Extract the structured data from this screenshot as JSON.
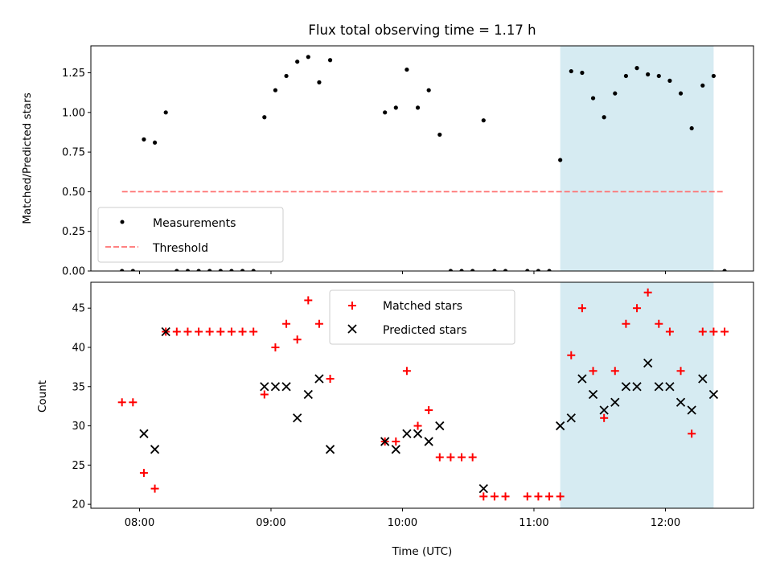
{
  "title": "Flux total observing time = 1.17 h",
  "colors": {
    "measurement": "#000000",
    "threshold": "#ff7070",
    "matched": "#ff0000",
    "predicted": "#000000",
    "highlight": "#add8e6"
  },
  "chart_data": [
    {
      "type": "scatter",
      "id": "ratio",
      "xlabel": "",
      "ylabel": "Matched/Predicted stars",
      "xlim_hours": [
        7.63,
        12.67
      ],
      "ylim": [
        0,
        1.42
      ],
      "yticks": [
        0.0,
        0.25,
        0.5,
        0.75,
        1.0,
        1.25
      ],
      "ytick_labels": [
        "0.00",
        "0.25",
        "0.50",
        "0.75",
        "1.00",
        "1.25"
      ],
      "highlight_span": [
        "11:12",
        "12:22"
      ],
      "legend": {
        "placement": "lower-left",
        "entries": [
          "Measurements",
          "Threshold"
        ]
      },
      "threshold": {
        "name": "Threshold",
        "value": 0.5,
        "x_from": "07:52",
        "x_to": "12:27"
      },
      "measurements": {
        "name": "Measurements",
        "points": [
          [
            "07:52",
            0.0
          ],
          [
            "07:57",
            0.0
          ],
          [
            "08:02",
            0.83
          ],
          [
            "08:07",
            0.81
          ],
          [
            "08:12",
            1.0
          ],
          [
            "08:17",
            0.0
          ],
          [
            "08:22",
            0.0
          ],
          [
            "08:27",
            0.0
          ],
          [
            "08:32",
            0.0
          ],
          [
            "08:37",
            0.0
          ],
          [
            "08:42",
            0.0
          ],
          [
            "08:47",
            0.0
          ],
          [
            "08:52",
            0.0
          ],
          [
            "08:57",
            0.97
          ],
          [
            "09:02",
            1.14
          ],
          [
            "09:07",
            1.23
          ],
          [
            "09:12",
            1.32
          ],
          [
            "09:17",
            1.35
          ],
          [
            "09:22",
            1.19
          ],
          [
            "09:27",
            1.33
          ],
          [
            "09:52",
            1.0
          ],
          [
            "09:57",
            1.03
          ],
          [
            "10:02",
            1.27
          ],
          [
            "10:07",
            1.03
          ],
          [
            "10:12",
            1.14
          ],
          [
            "10:17",
            0.86
          ],
          [
            "10:22",
            0.0
          ],
          [
            "10:27",
            0.0
          ],
          [
            "10:32",
            0.0
          ],
          [
            "10:37",
            0.95
          ],
          [
            "10:42",
            0.0
          ],
          [
            "10:47",
            0.0
          ],
          [
            "10:57",
            0.0
          ],
          [
            "11:02",
            0.0
          ],
          [
            "11:07",
            0.0
          ],
          [
            "11:12",
            0.7
          ],
          [
            "11:17",
            1.26
          ],
          [
            "11:22",
            1.25
          ],
          [
            "11:27",
            1.09
          ],
          [
            "11:32",
            0.97
          ],
          [
            "11:37",
            1.12
          ],
          [
            "11:42",
            1.23
          ],
          [
            "11:47",
            1.28
          ],
          [
            "11:52",
            1.24
          ],
          [
            "11:57",
            1.23
          ],
          [
            "12:02",
            1.2
          ],
          [
            "12:07",
            1.12
          ],
          [
            "12:12",
            0.9
          ],
          [
            "12:17",
            1.17
          ],
          [
            "12:22",
            1.23
          ],
          [
            "12:27",
            0.0
          ]
        ]
      }
    },
    {
      "type": "scatter",
      "id": "counts",
      "xlabel": "Time (UTC)",
      "ylabel": "Count",
      "xlim_hours": [
        7.63,
        12.67
      ],
      "xticks": [
        "08:00",
        "09:00",
        "10:00",
        "11:00",
        "12:00"
      ],
      "ylim": [
        19.5,
        48.3
      ],
      "yticks": [
        20,
        25,
        30,
        35,
        40,
        45
      ],
      "highlight_span": [
        "11:12",
        "12:22"
      ],
      "legend": {
        "placement": "upper-center",
        "entries": [
          "Matched stars",
          "Predicted stars"
        ]
      },
      "series": [
        {
          "name": "Matched stars",
          "marker": "plus",
          "points": [
            [
              "07:52",
              33
            ],
            [
              "07:57",
              33
            ],
            [
              "08:02",
              24
            ],
            [
              "08:07",
              22
            ],
            [
              "08:12",
              42
            ],
            [
              "08:17",
              42
            ],
            [
              "08:22",
              42
            ],
            [
              "08:27",
              42
            ],
            [
              "08:32",
              42
            ],
            [
              "08:37",
              42
            ],
            [
              "08:42",
              42
            ],
            [
              "08:47",
              42
            ],
            [
              "08:52",
              42
            ],
            [
              "08:57",
              34
            ],
            [
              "09:02",
              40
            ],
            [
              "09:07",
              43
            ],
            [
              "09:12",
              41
            ],
            [
              "09:17",
              46
            ],
            [
              "09:22",
              43
            ],
            [
              "09:27",
              36
            ],
            [
              "09:52",
              28
            ],
            [
              "09:57",
              28
            ],
            [
              "10:02",
              37
            ],
            [
              "10:07",
              30
            ],
            [
              "10:12",
              32
            ],
            [
              "10:17",
              26
            ],
            [
              "10:22",
              26
            ],
            [
              "10:27",
              26
            ],
            [
              "10:32",
              26
            ],
            [
              "10:37",
              21
            ],
            [
              "10:42",
              21
            ],
            [
              "10:47",
              21
            ],
            [
              "10:57",
              21
            ],
            [
              "11:02",
              21
            ],
            [
              "11:07",
              21
            ],
            [
              "11:12",
              21
            ],
            [
              "11:17",
              39
            ],
            [
              "11:22",
              45
            ],
            [
              "11:27",
              37
            ],
            [
              "11:32",
              31
            ],
            [
              "11:37",
              37
            ],
            [
              "11:42",
              43
            ],
            [
              "11:47",
              45
            ],
            [
              "11:52",
              47
            ],
            [
              "11:57",
              43
            ],
            [
              "12:02",
              42
            ],
            [
              "12:07",
              37
            ],
            [
              "12:12",
              29
            ],
            [
              "12:17",
              42
            ],
            [
              "12:22",
              42
            ],
            [
              "12:27",
              42
            ]
          ]
        },
        {
          "name": "Predicted stars",
          "marker": "x",
          "points": [
            [
              "08:02",
              29
            ],
            [
              "08:07",
              27
            ],
            [
              "08:12",
              42
            ],
            [
              "08:57",
              35
            ],
            [
              "09:02",
              35
            ],
            [
              "09:07",
              35
            ],
            [
              "09:12",
              31
            ],
            [
              "09:17",
              34
            ],
            [
              "09:22",
              36
            ],
            [
              "09:27",
              27
            ],
            [
              "09:52",
              28
            ],
            [
              "09:57",
              27
            ],
            [
              "10:02",
              29
            ],
            [
              "10:07",
              29
            ],
            [
              "10:12",
              28
            ],
            [
              "10:17",
              30
            ],
            [
              "10:37",
              22
            ],
            [
              "11:12",
              30
            ],
            [
              "11:17",
              31
            ],
            [
              "11:22",
              36
            ],
            [
              "11:27",
              34
            ],
            [
              "11:32",
              32
            ],
            [
              "11:37",
              33
            ],
            [
              "11:42",
              35
            ],
            [
              "11:47",
              35
            ],
            [
              "11:52",
              38
            ],
            [
              "11:57",
              35
            ],
            [
              "12:02",
              35
            ],
            [
              "12:07",
              33
            ],
            [
              "12:12",
              32
            ],
            [
              "12:17",
              36
            ],
            [
              "12:22",
              34
            ]
          ]
        }
      ]
    }
  ]
}
